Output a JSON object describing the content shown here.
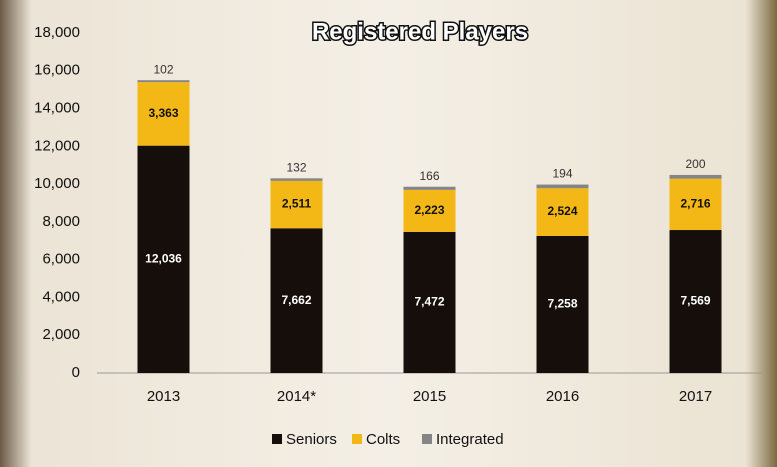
{
  "chart_data": {
    "type": "stacked_bar",
    "title": "Registered Players",
    "categories": [
      "2013",
      "2014*",
      "2015",
      "2016",
      "2017"
    ],
    "series": [
      {
        "name": "Seniors",
        "color": "#150e0a",
        "values": [
          12036,
          7662,
          7472,
          7258,
          7569
        ],
        "value_labels": [
          "12,036",
          "7,662",
          "7,472",
          "7,258",
          "7,569"
        ]
      },
      {
        "name": "Colts",
        "color": "#f4b816",
        "values": [
          3363,
          2511,
          2223,
          2524,
          2716
        ],
        "value_labels": [
          "3,363",
          "2,511",
          "2,223",
          "2,524",
          "2,716"
        ]
      },
      {
        "name": "Integrated",
        "color": "#858585",
        "values": [
          102,
          132,
          166,
          194,
          200
        ]
      }
    ],
    "ylim": [
      0,
      18000
    ],
    "yticks": [
      0,
      {
        "value": 2000,
        "label": "2,000"
      },
      {
        "value": 4000,
        "label": "4,000"
      },
      {
        "value": 6000,
        "label": "6,000"
      },
      {
        "value": 8000,
        "label": "8,000"
      },
      {
        "value": 10000,
        "label": "10,000"
      },
      {
        "value": 12000,
        "label": "12,000"
      },
      {
        "value": 14000,
        "label": "14,000"
      },
      {
        "value": 16000,
        "label": "16,000"
      },
      {
        "value": 18000,
        "label": "18,000"
      }
    ],
    "grid": false,
    "legend": "bottom"
  }
}
